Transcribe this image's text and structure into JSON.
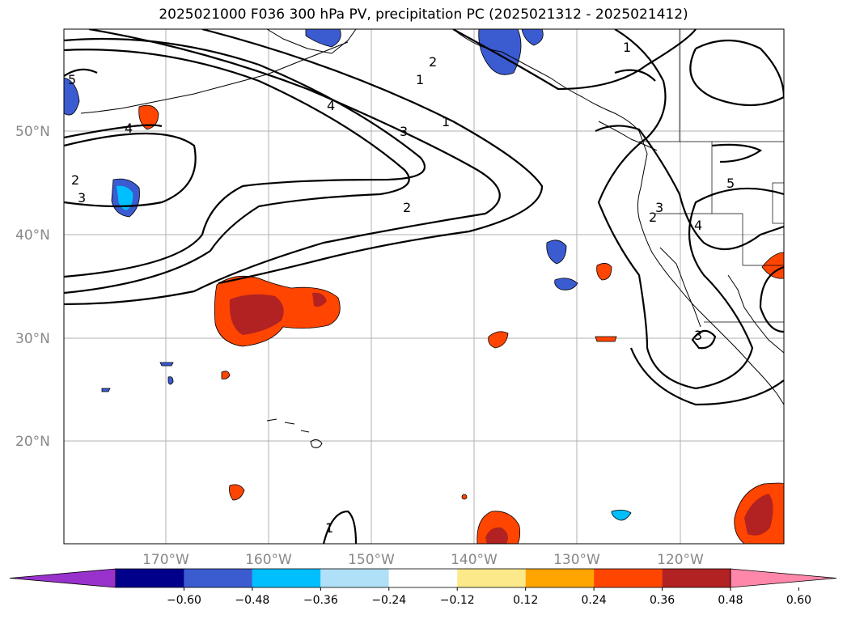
{
  "title": "2025021000 F036 300 hPa PV, precipitation PC (2025021312 - 2025021412)",
  "lat_labels": [
    "50°N",
    "40°N",
    "30°N",
    "20°N"
  ],
  "lon_labels": [
    "170°W",
    "160°W",
    "150°W",
    "140°W",
    "130°W",
    "120°W"
  ],
  "colorbar": {
    "ticks": [
      "−0.60",
      "−0.48",
      "−0.36",
      "−0.24",
      "−0.12",
      "0.12",
      "0.24",
      "0.36",
      "0.48",
      "0.60"
    ],
    "colors": [
      "#9932cc",
      "#00008b",
      "#3b5bd0",
      "#00bfff",
      "#b0e0f8",
      "#ffffff",
      "#fce98a",
      "#ffa500",
      "#ff4500",
      "#b22222",
      "#ff88aa"
    ]
  },
  "contour_labels": [
    "5",
    "4",
    "2",
    "3",
    "4",
    "3",
    "2",
    "1",
    "1",
    "2",
    "1",
    "2",
    "3",
    "4",
    "5",
    "3",
    "1"
  ]
}
